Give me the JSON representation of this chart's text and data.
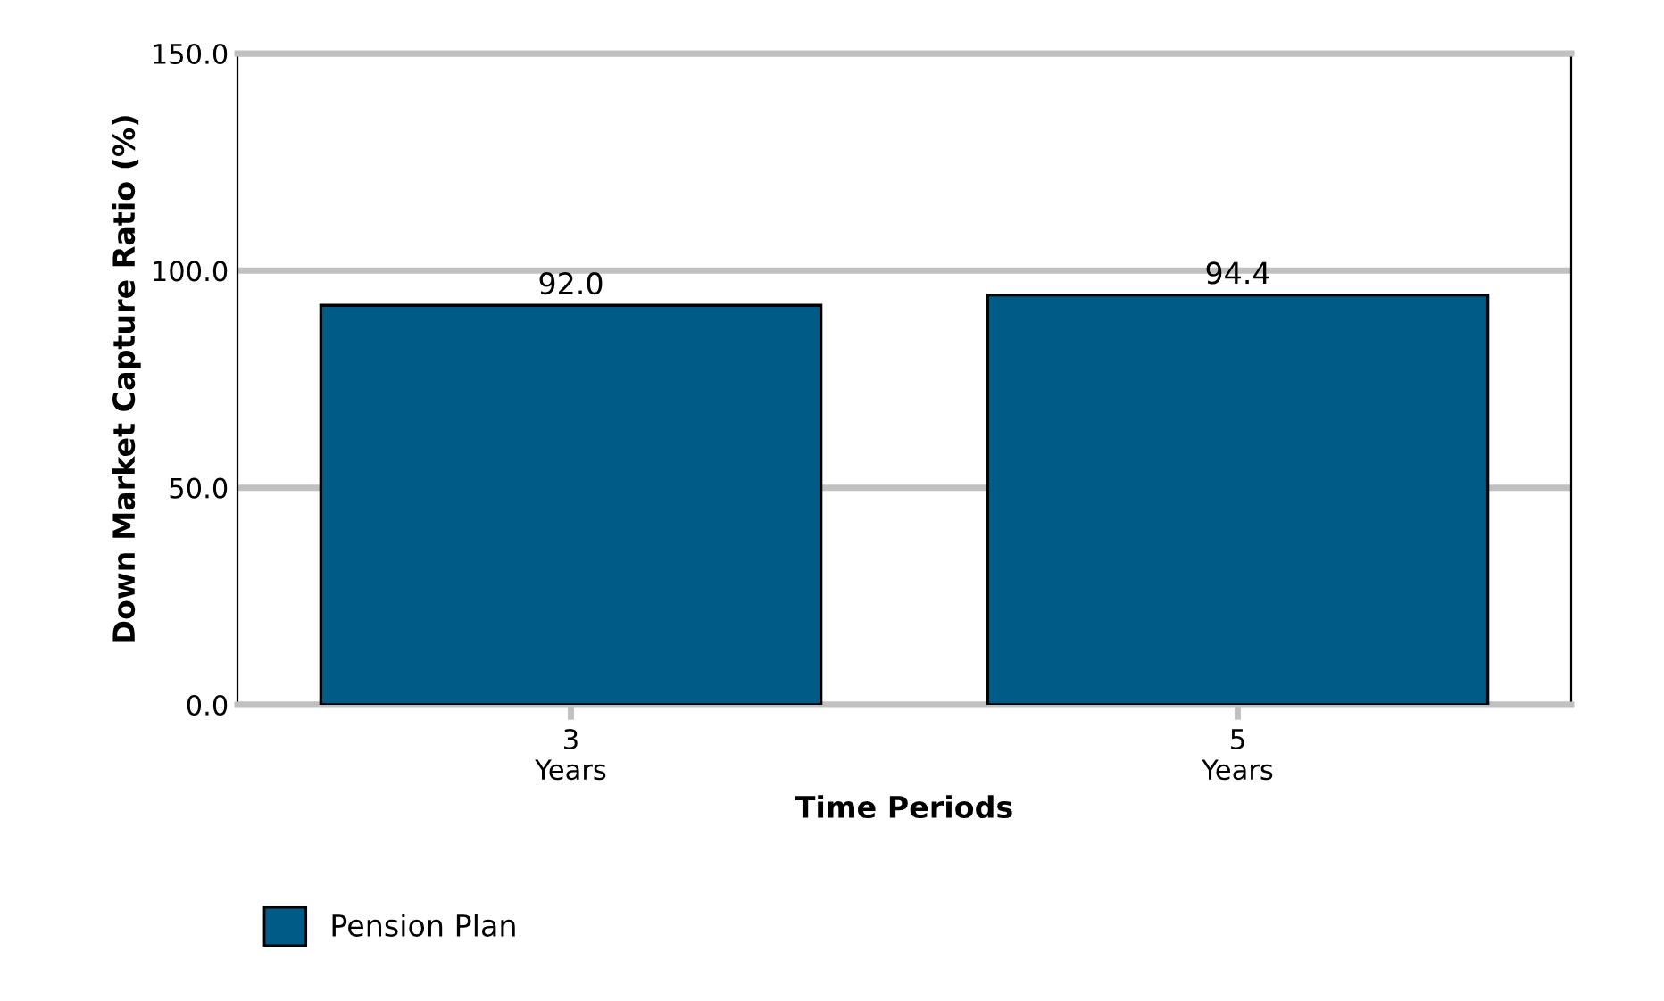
{
  "chart_data": {
    "type": "bar",
    "xlabel": "Time Periods",
    "ylabel": "Down Market Capture Ratio (%)",
    "categories": [
      "3\nYears",
      "5\nYears"
    ],
    "series": [
      {
        "name": "Pension Plan",
        "color": "#005b86",
        "values": [
          92.0,
          94.4
        ],
        "value_labels": [
          "92.0",
          "94.4"
        ]
      }
    ],
    "ylim": [
      0,
      150
    ],
    "yticks": [
      {
        "value": 0,
        "label": "0.0"
      },
      {
        "value": 50,
        "label": "50.0"
      },
      {
        "value": 100,
        "label": "100.0"
      },
      {
        "value": 150,
        "label": "150.0"
      }
    ],
    "grid": "y",
    "legend": "bottom left"
  }
}
